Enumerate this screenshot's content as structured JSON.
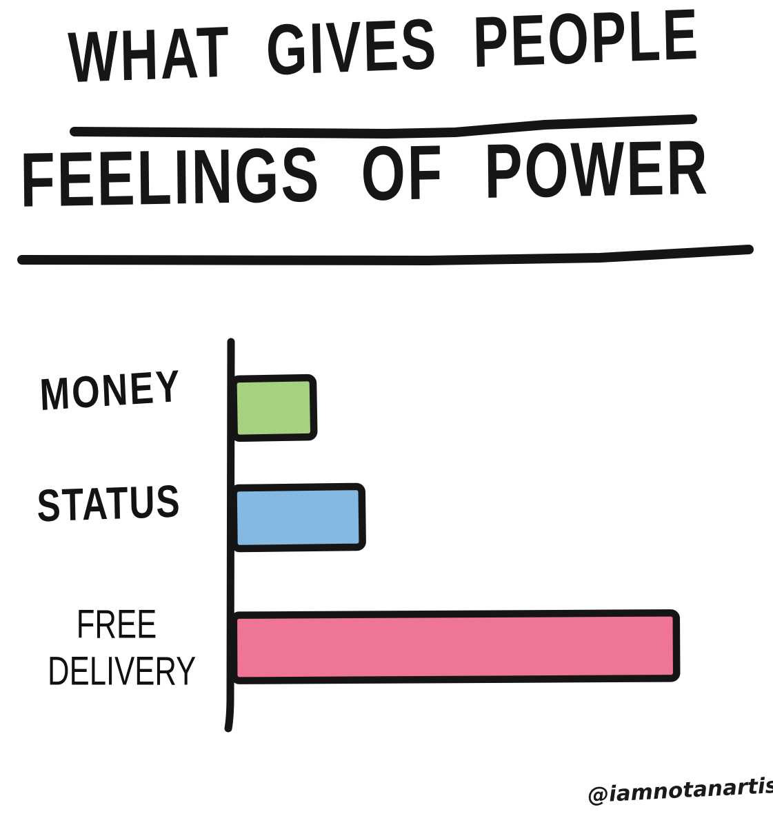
{
  "page": {
    "background": "#ffffff",
    "ink_color": "#151515"
  },
  "title": {
    "line1": "WHAT GIVES PEOPLE",
    "line2": "FEELINGS OF POWER"
  },
  "signature": "@iamnotanartist_",
  "chart_data": {
    "type": "bar",
    "orientation": "horizontal",
    "style": "hand-drawn meme",
    "title": "WHAT GIVES PEOPLE FEELINGS OF POWER",
    "categories": [
      "MONEY",
      "STATUS",
      "FREE DELIVERY"
    ],
    "values": [
      18,
      29,
      100
    ],
    "value_scale": "relative bar lengths, longest bar = 100 (no numeric axis shown)",
    "colors": [
      "#a6d181",
      "#86b9e1",
      "#ee7593"
    ],
    "bar_outline_color": "#151515",
    "xlabel": "",
    "ylabel": "",
    "grid": false,
    "legend": "none",
    "axis": "single vertical baseline on left, hand-drawn"
  }
}
